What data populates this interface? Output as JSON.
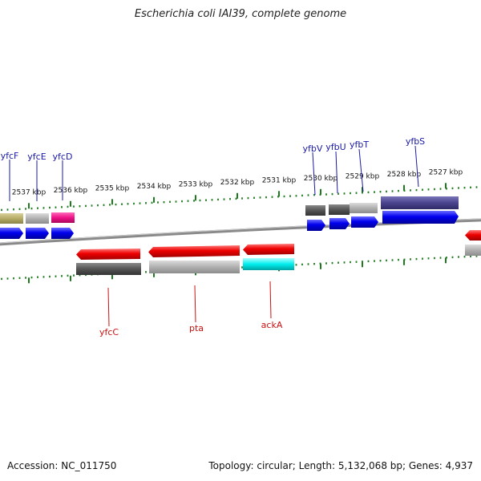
{
  "title": "Escherichia coli IAI39, complete genome",
  "footer": {
    "accession": "Accession: NC_011750",
    "stats": "Topology: circular; Length: 5,132,068 bp; Genes: 4,937"
  },
  "scale_labels": [
    "2537 kbp",
    "2536 kbp",
    "2535 kbp",
    "2534 kbp",
    "2533 kbp",
    "2532 kbp",
    "2531 kbp",
    "2530 kbp",
    "2529 kbp",
    "2528 kbp",
    "2527 kbp"
  ],
  "gene_labels": {
    "top": [
      "yfcF",
      "yfcE",
      "yfcD",
      "yfbV",
      "yfbU",
      "yfbT",
      "yfbS"
    ],
    "bottom": [
      "yfcC",
      "pta",
      "ackA"
    ]
  },
  "colors": {
    "top_label": "#1a1aa8",
    "bottom_label": "#cc1111",
    "tick": "#1e7a1e",
    "forward_gene": "#0000ee",
    "reverse_gene": "#ee0000",
    "backbone": "#808080"
  }
}
